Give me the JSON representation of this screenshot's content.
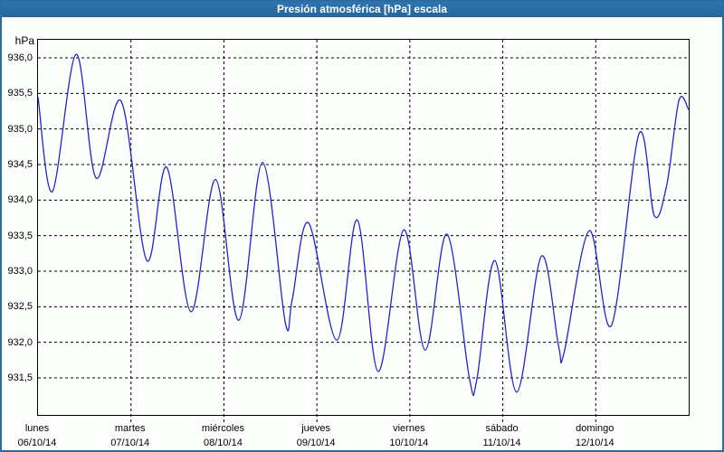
{
  "window": {
    "title": "Presión atmosférica [hPa] escala"
  },
  "y_axis": {
    "unit": "hPa",
    "tick_labels": [
      "936,0",
      "935,5",
      "935,0",
      "934,5",
      "934,0",
      "933,5",
      "933,0",
      "932,5",
      "932,0",
      "931,5"
    ],
    "tick_values": [
      936.0,
      935.5,
      935.0,
      934.5,
      934.0,
      933.5,
      933.0,
      932.5,
      932.0,
      931.5
    ]
  },
  "x_axis": {
    "days": [
      {
        "name": "lunes",
        "date": "06/10/14"
      },
      {
        "name": "martes",
        "date": "07/10/14"
      },
      {
        "name": "miércoles",
        "date": "08/10/14"
      },
      {
        "name": "jueves",
        "date": "09/10/14"
      },
      {
        "name": "viernes",
        "date": "10/10/14"
      },
      {
        "name": "sábado",
        "date": "11/10/14"
      },
      {
        "name": "domingo",
        "date": "12/10/14"
      }
    ]
  },
  "colors": {
    "title_bar": "#2c6da5",
    "title_text": "#ffffff",
    "frame_border": "#2b6ca3",
    "plot_border": "#000000",
    "grid": "#000000",
    "line": "#2323cc",
    "background": "#fdfffd"
  },
  "chart_data": {
    "type": "line",
    "title": "Presión atmosférica [hPa] escala",
    "xlabel": "",
    "ylabel": "hPa",
    "ylim": [
      930.98,
      936.28
    ],
    "xlim_days": [
      0,
      7
    ],
    "grid": "dashed",
    "legend": "none",
    "y_ticks": [
      936.0,
      935.5,
      935.0,
      934.5,
      934.0,
      933.5,
      933.0,
      932.5,
      932.0,
      931.5
    ],
    "x_tick_labels": [
      "lunes 06/10/14",
      "martes 07/10/14",
      "miércoles 08/10/14",
      "jueves 09/10/14",
      "viernes 10/10/14",
      "sábado 11/10/14",
      "domingo 12/10/14"
    ],
    "series": [
      {
        "name": "Presión atmosférica",
        "x_days": [
          0.0,
          0.155,
          0.41,
          0.625,
          0.895,
          1.17,
          1.385,
          1.645,
          1.91,
          2.16,
          2.415,
          2.66,
          2.735,
          2.91,
          3.215,
          3.435,
          3.66,
          3.935,
          4.165,
          4.4,
          4.64,
          4.72,
          4.915,
          5.15,
          5.415,
          5.6,
          5.66,
          5.93,
          6.17,
          6.465,
          6.63,
          6.765,
          6.895,
          7.0
        ],
        "values": [
          935.45,
          934.12,
          936.05,
          934.31,
          935.39,
          933.15,
          934.46,
          932.43,
          934.29,
          932.31,
          934.53,
          932.28,
          932.6,
          933.68,
          932.03,
          933.72,
          931.59,
          933.58,
          931.89,
          933.52,
          931.5,
          931.47,
          933.15,
          931.3,
          933.21,
          931.95,
          931.86,
          933.57,
          932.24,
          934.93,
          933.78,
          934.22,
          935.4,
          935.27
        ]
      }
    ]
  }
}
